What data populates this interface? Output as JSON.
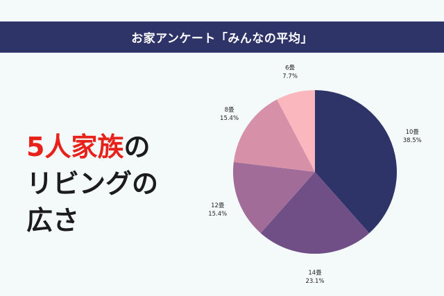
{
  "banner": {
    "title": "お家アンケート「みんなの平均」"
  },
  "headline": {
    "line1_accent": "5人家族",
    "line1_rest": "の",
    "line2": "リビングの",
    "line3": "広さ"
  },
  "chart_data": {
    "type": "pie",
    "title": "",
    "slices": [
      {
        "label": "10畳",
        "value": 38.5,
        "pct_label": "38.5%",
        "color": "#2e3368"
      },
      {
        "label": "14畳",
        "value": 23.1,
        "pct_label": "23.1%",
        "color": "#704f86"
      },
      {
        "label": "12畳",
        "value": 15.4,
        "pct_label": "15.4%",
        "color": "#a16c98"
      },
      {
        "label": "8畳",
        "value": 15.4,
        "pct_label": "15.4%",
        "color": "#d690a8"
      },
      {
        "label": "6畳",
        "value": 7.7,
        "pct_label": "7.7%",
        "color": "#fbb7be"
      }
    ],
    "start": "top",
    "direction": "clockwise"
  }
}
